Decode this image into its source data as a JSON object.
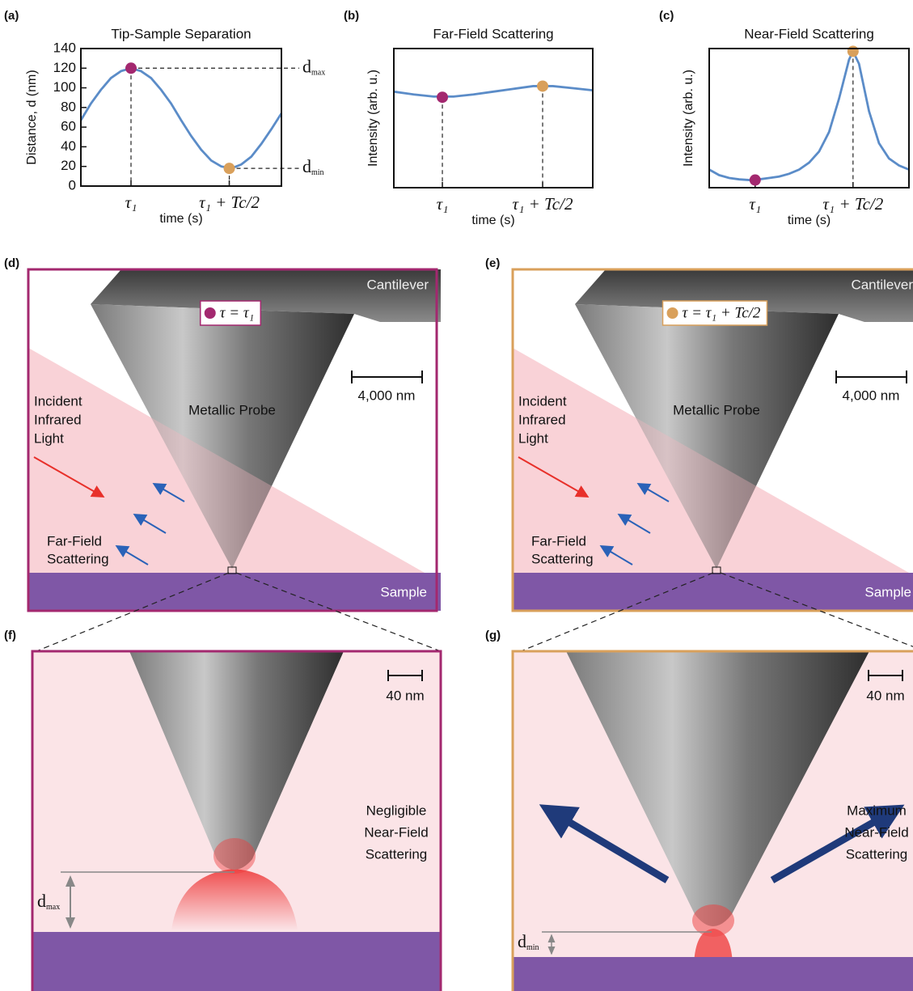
{
  "figure": {
    "panel_labels": [
      "(a)",
      "(b)",
      "(c)",
      "(d)",
      "(e)",
      "(f)",
      "(g)"
    ]
  },
  "chart_data": [
    {
      "type": "line",
      "title": "Tip-Sample Separation",
      "x_label": "time (s)",
      "y_label": "Distance, d (nm)",
      "x": [
        0,
        0.05,
        0.1,
        0.15,
        0.2,
        0.25,
        0.3,
        0.35,
        0.4,
        0.45,
        0.5,
        0.55,
        0.6,
        0.65,
        0.7,
        0.75,
        0.8,
        0.85,
        0.9,
        0.95,
        1
      ],
      "series": [
        {
          "color": "#5b8cc8",
          "values": [
            67,
            84,
            98,
            110,
            117,
            120,
            117,
            110,
            98,
            84,
            67,
            51,
            37,
            26,
            20,
            18,
            22,
            30,
            43,
            58,
            74
          ]
        }
      ],
      "xlim": [
        0,
        1
      ],
      "ylim": [
        0,
        140
      ],
      "yticks": [
        0,
        20,
        40,
        60,
        80,
        100,
        120,
        140
      ],
      "xticks": [
        {
          "value": 0.25,
          "label": "τ₁"
        },
        {
          "value": 0.74,
          "label": "τ₁ + Tc/2"
        }
      ],
      "points": [
        {
          "x": 0.25,
          "y": 120,
          "color": "#a3286f"
        },
        {
          "x": 0.74,
          "y": 18,
          "color": "#d9a05b"
        }
      ],
      "annotations": [
        {
          "main": "d",
          "sub": "max"
        },
        {
          "main": "d",
          "sub": "min"
        }
      ]
    },
    {
      "type": "line",
      "title": "Far-Field Scattering",
      "x_label": "time (s)",
      "y_label": "Intensity (arb. u.)",
      "x": [
        0,
        0.1,
        0.2,
        0.3,
        0.4,
        0.5,
        0.6,
        0.7,
        0.8,
        0.9,
        1
      ],
      "series": [
        {
          "color": "#5b8cc8",
          "values": [
            6.9,
            6.7,
            6.55,
            6.55,
            6.7,
            6.9,
            7.1,
            7.3,
            7.3,
            7.15,
            7.0
          ]
        }
      ],
      "xlim": [
        0,
        1
      ],
      "ylim": [
        0,
        10
      ],
      "xticks": [
        {
          "value": 0.244,
          "label": "τ₁"
        },
        {
          "value": 0.748,
          "label": "τ₁ + Tc/2"
        }
      ],
      "points": [
        {
          "x": 0.244,
          "y": 6.5,
          "color": "#a3286f"
        },
        {
          "x": 0.748,
          "y": 7.3,
          "color": "#d9a05b"
        }
      ]
    },
    {
      "type": "line",
      "title": "Near-Field Scattering",
      "x_label": "time (s)",
      "y_label": "Intensity (arb. u.)",
      "x": [
        0,
        0.05,
        0.1,
        0.15,
        0.2,
        0.25,
        0.3,
        0.35,
        0.4,
        0.45,
        0.5,
        0.55,
        0.6,
        0.65,
        0.7,
        0.72,
        0.75,
        0.8,
        0.85,
        0.9,
        0.95,
        1
      ],
      "series": [
        {
          "color": "#5b8cc8",
          "values": [
            1.3,
            0.9,
            0.7,
            0.6,
            0.55,
            0.6,
            0.7,
            0.8,
            1.0,
            1.3,
            1.8,
            2.6,
            4.0,
            6.4,
            9.2,
            9.8,
            8.9,
            5.5,
            3.2,
            2.1,
            1.6,
            1.3
          ]
        }
      ],
      "xlim": [
        0,
        1
      ],
      "ylim": [
        0,
        10
      ],
      "xticks": [
        {
          "value": 0.23,
          "label": "τ₁"
        },
        {
          "value": 0.72,
          "label": "τ₁ + Tc/2"
        }
      ],
      "points": [
        {
          "x": 0.23,
          "y": 0.55,
          "color": "#a3286f"
        },
        {
          "x": 0.72,
          "y": 9.8,
          "color": "#d9a05b"
        }
      ]
    }
  ],
  "diagrams": [
    {
      "cantilever": "Cantilever",
      "probe": "Metallic Probe",
      "incident": [
        "Incident",
        "Infrared",
        "Light"
      ],
      "far_field": [
        "Far-Field",
        "Scattering"
      ],
      "sample": "Sample",
      "scale": "4,000 nm",
      "legend": "τ = τ₁",
      "frame_color": "#a3286f"
    },
    {
      "cantilever": "Cantilever",
      "probe": "Metallic Probe",
      "incident": [
        "Incident",
        "Infrared",
        "Light"
      ],
      "far_field": [
        "Far-Field",
        "Scattering"
      ],
      "sample": "Sample",
      "scale": "4,000 nm",
      "legend": "τ = τ₁ + Tc/2",
      "frame_color": "#d9a05b"
    }
  ],
  "zooms": [
    {
      "scale": "40 nm",
      "gap": {
        "main": "d",
        "sub": "max"
      },
      "caption": [
        "Negligible",
        "Near-Field",
        "Scattering"
      ],
      "frame_color": "#a3286f"
    },
    {
      "scale": "40 nm",
      "gap": {
        "main": "d",
        "sub": "min"
      },
      "caption": [
        "Maximum",
        "Near-Field",
        "Scattering"
      ],
      "frame_color": "#d9a05b"
    }
  ]
}
